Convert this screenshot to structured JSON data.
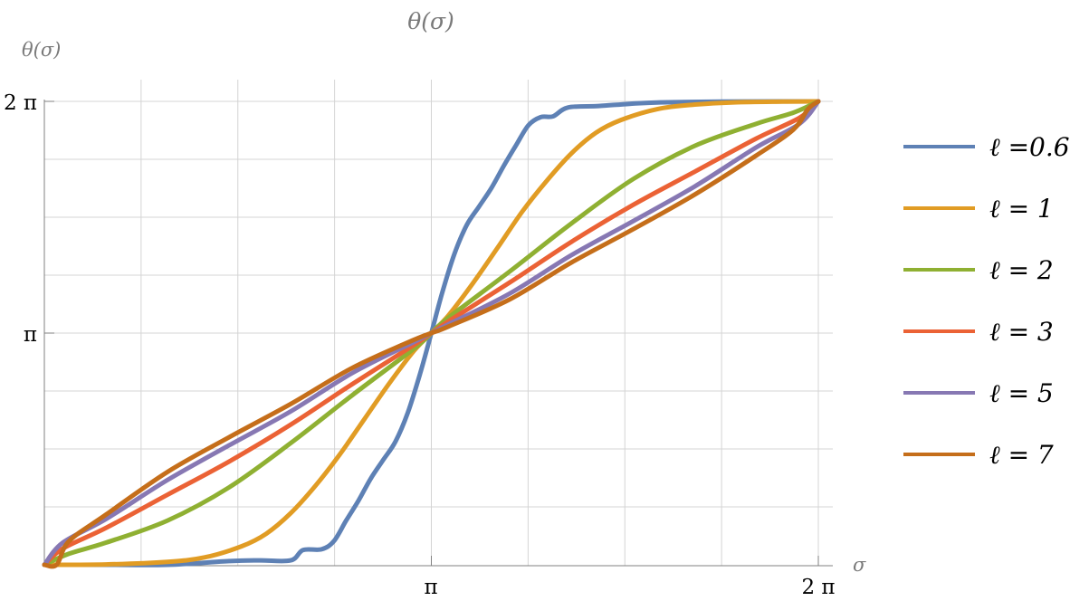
{
  "chart_data": {
    "type": "line",
    "title": "θ(σ)",
    "ylabel": "θ(σ)",
    "xlabel": "σ",
    "xlim": [
      0,
      6.283185
    ],
    "ylim": [
      0,
      6.283185
    ],
    "grid": true,
    "legend_position": "right",
    "x_ticks": [
      {
        "value": 3.141593,
        "label": "π"
      },
      {
        "value": 6.283185,
        "label": "2 π"
      }
    ],
    "y_ticks": [
      {
        "value": 3.141593,
        "label": "π"
      },
      {
        "value": 6.283185,
        "label": "2 π"
      }
    ],
    "series": [
      {
        "name": "ℓ =0.6",
        "color": "#5E81B5",
        "x": [
          0.0,
          0.15,
          0.5,
          1.0,
          1.5,
          1.75,
          2.0,
          2.1,
          2.25,
          2.35,
          2.45,
          2.55,
          2.65,
          2.75,
          2.85,
          2.95,
          3.05,
          3.141593,
          3.23,
          3.33,
          3.43,
          3.53,
          3.63,
          3.73,
          3.83,
          3.93,
          4.03,
          4.13,
          4.25,
          4.5,
          4.75,
          5.0,
          5.5,
          6.0,
          6.283185
        ],
        "y": [
          0.0,
          0.0,
          0.0,
          0.0,
          0.05,
          0.06,
          0.06,
          0.2,
          0.21,
          0.32,
          0.6,
          0.87,
          1.17,
          1.42,
          1.67,
          2.06,
          2.59,
          3.141593,
          3.69,
          4.22,
          4.61,
          4.86,
          5.11,
          5.41,
          5.69,
          5.96,
          6.07,
          6.08,
          6.2,
          6.22,
          6.25,
          6.27,
          6.28,
          6.283,
          6.283185
        ]
      },
      {
        "name": "ℓ = 1",
        "color": "#E19C24",
        "x": [
          0.0,
          0.5,
          1.0,
          1.3,
          1.6,
          1.8,
          2.0,
          2.2,
          2.4,
          2.6,
          2.8,
          3.0,
          3.141593,
          3.28,
          3.48,
          3.68,
          3.88,
          4.08,
          4.28,
          4.48,
          4.68,
          4.98,
          5.28,
          5.6,
          6.0,
          6.283185
        ],
        "y": [
          0.0,
          0.005,
          0.04,
          0.1,
          0.25,
          0.42,
          0.7,
          1.07,
          1.5,
          1.98,
          2.46,
          2.9,
          3.141593,
          3.38,
          3.82,
          4.3,
          4.79,
          5.21,
          5.58,
          5.86,
          6.03,
          6.18,
          6.24,
          6.27,
          6.28,
          6.283185
        ]
      },
      {
        "name": "ℓ = 2",
        "color": "#8FB032",
        "x": [
          0.0,
          0.2,
          0.5,
          1.0,
          1.5,
          2.0,
          2.5,
          3.0,
          3.141593,
          3.28,
          3.78,
          4.28,
          4.78,
          5.28,
          5.78,
          6.08,
          6.283185
        ],
        "y": [
          0.0,
          0.15,
          0.3,
          0.6,
          1.05,
          1.65,
          2.3,
          2.93,
          3.141593,
          3.35,
          3.98,
          4.63,
          5.23,
          5.68,
          5.98,
          6.13,
          6.283185
        ]
      },
      {
        "name": "ℓ = 3",
        "color": "#EB6235",
        "x": [
          0.0,
          0.15,
          0.5,
          1.0,
          1.5,
          2.0,
          2.5,
          3.0,
          3.141593,
          3.28,
          3.78,
          4.28,
          4.78,
          5.28,
          5.78,
          6.13,
          6.283185
        ],
        "y": [
          0.0,
          0.22,
          0.5,
          0.95,
          1.4,
          1.9,
          2.45,
          2.98,
          3.141593,
          3.3,
          3.83,
          4.38,
          4.88,
          5.33,
          5.78,
          6.06,
          6.283185
        ]
      },
      {
        "name": "ℓ = 5",
        "color": "#8778B3",
        "x": [
          0.0,
          0.15,
          0.5,
          1.0,
          1.5,
          2.0,
          2.5,
          3.0,
          3.141593,
          3.28,
          3.78,
          4.28,
          4.78,
          5.28,
          5.78,
          6.13,
          6.283185
        ],
        "y": [
          0.0,
          0.3,
          0.62,
          1.15,
          1.62,
          2.08,
          2.6,
          3.02,
          3.141593,
          3.26,
          3.68,
          4.2,
          4.66,
          5.13,
          5.66,
          5.98,
          6.283185
        ]
      },
      {
        "name": "ℓ = 7",
        "color": "#C56E1A",
        "x": [
          0.0,
          0.1,
          0.2,
          0.5,
          1.0,
          1.5,
          2.0,
          2.5,
          3.0,
          3.141593,
          3.28,
          3.78,
          4.28,
          4.78,
          5.28,
          5.78,
          6.08,
          6.2,
          6.283185
        ],
        "y": [
          0.0,
          0.0,
          0.32,
          0.68,
          1.26,
          1.73,
          2.18,
          2.67,
          3.05,
          3.141593,
          3.23,
          3.6,
          4.1,
          4.55,
          5.02,
          5.55,
          5.9,
          6.18,
          6.283185
        ]
      }
    ]
  }
}
